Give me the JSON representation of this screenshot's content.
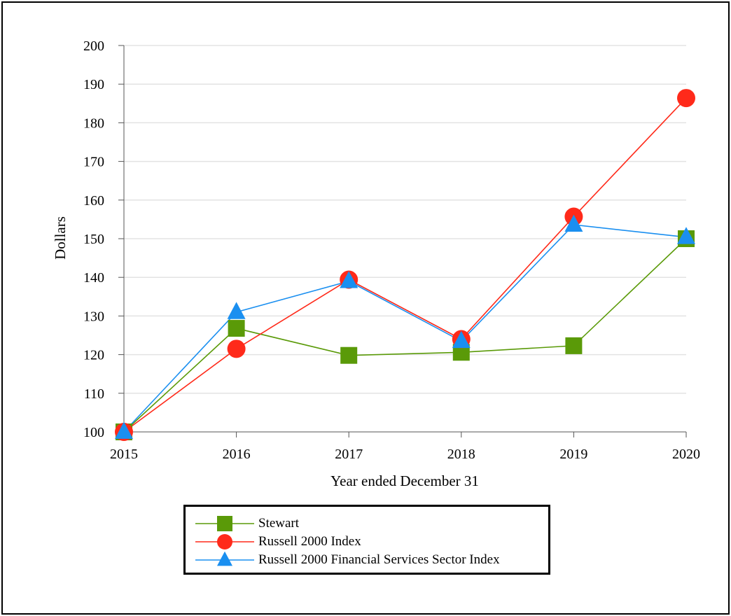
{
  "chart_data": {
    "type": "line",
    "xlabel": "Year ended December 31",
    "ylabel": "Dollars",
    "categories": [
      "2015",
      "2016",
      "2017",
      "2018",
      "2019",
      "2020"
    ],
    "ylim": [
      100,
      200
    ],
    "yticks": [
      "100",
      "110",
      "120",
      "130",
      "140",
      "150",
      "160",
      "170",
      "180",
      "190",
      "200"
    ],
    "grid": true,
    "legend_position": "bottom-center",
    "series": [
      {
        "name": "Stewart",
        "values": [
          100,
          126.8,
          119.8,
          120.6,
          122.3,
          150.0
        ],
        "color": "#5a9a08",
        "marker": "square"
      },
      {
        "name": "Russell 2000 Index",
        "values": [
          100,
          121.5,
          139.4,
          124.0,
          155.7,
          186.4
        ],
        "color": "#ff2a1a",
        "marker": "circle"
      },
      {
        "name": "Russell 2000 Financial Services Sector Index",
        "values": [
          100,
          131.0,
          139.0,
          123.5,
          153.6,
          150.4
        ],
        "color": "#1a8ff0",
        "marker": "triangle"
      }
    ]
  }
}
